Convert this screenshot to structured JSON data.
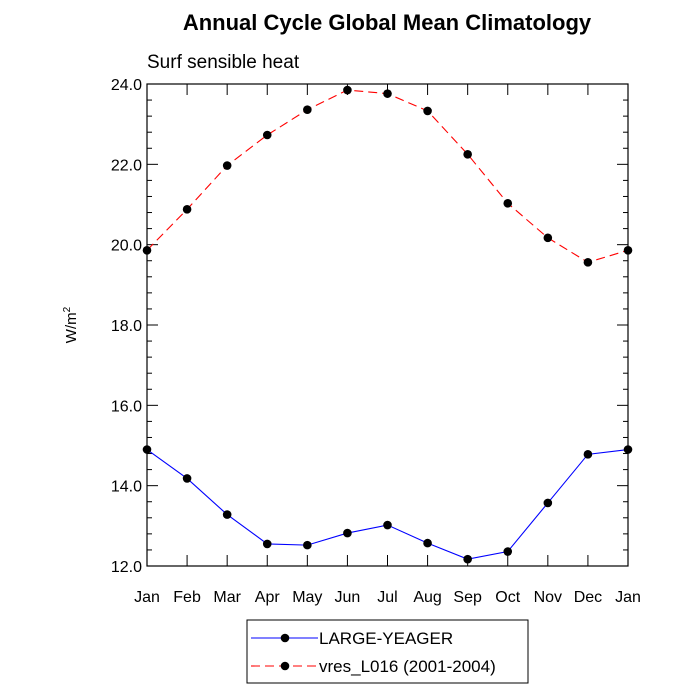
{
  "chart_data": {
    "type": "line",
    "title": "Annual Cycle Global Mean Climatology",
    "subtitle": "Surf sensible heat",
    "ylabel_base": "W/m",
    "ylabel_sup": "2",
    "xlabel": "",
    "categories": [
      "Jan",
      "Feb",
      "Mar",
      "Apr",
      "May",
      "Jun",
      "Jul",
      "Aug",
      "Sep",
      "Oct",
      "Nov",
      "Dec",
      "Jan"
    ],
    "ylim": [
      12.0,
      24.0
    ],
    "yticks": [
      "12.0",
      "14.0",
      "16.0",
      "18.0",
      "20.0",
      "22.0",
      "24.0"
    ],
    "grid": false,
    "legend_position": "bottom",
    "series": [
      {
        "name": "LARGE-YEAGER",
        "color": "#0000ff",
        "dash": "solid",
        "values": [
          14.9,
          14.18,
          13.28,
          12.55,
          12.52,
          12.82,
          13.02,
          12.57,
          12.17,
          12.36,
          13.57,
          14.78,
          14.9
        ]
      },
      {
        "name": "vres_L016 (2001-2004)",
        "color": "#ff0000",
        "dash": "dashed",
        "values": [
          19.86,
          20.88,
          21.97,
          22.73,
          23.36,
          23.85,
          23.76,
          23.33,
          22.25,
          21.03,
          20.17,
          19.56,
          19.86
        ]
      }
    ]
  }
}
